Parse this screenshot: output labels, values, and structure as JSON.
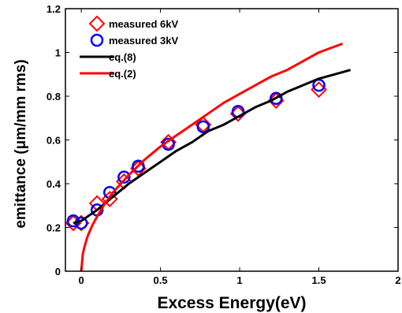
{
  "chart_data": {
    "type": "scatter",
    "xlabel": "Excess Energy(eV)",
    "ylabel": "emittance (μm/mm rms)",
    "xlim": [
      -0.1,
      2.0
    ],
    "ylim": [
      0,
      1.2
    ],
    "x_ticks": [
      "0",
      "0.5",
      "1",
      "1.5",
      "2"
    ],
    "y_ticks": [
      "0",
      "0.2",
      "0.4",
      "0.6",
      "0.8",
      "1",
      "1.2"
    ],
    "grid": false,
    "legend_position": "top-left",
    "series": [
      {
        "name": "measured 6kV",
        "kind": "marker",
        "marker": "diamond",
        "color": "#ff0000",
        "x": [
          -0.05,
          0.0,
          0.1,
          0.18,
          0.27,
          0.36,
          0.55,
          0.77,
          0.99,
          1.23,
          1.5
        ],
        "y": [
          0.22,
          0.22,
          0.31,
          0.33,
          0.41,
          0.47,
          0.59,
          0.67,
          0.72,
          0.78,
          0.83
        ]
      },
      {
        "name": "measured 3kV",
        "kind": "marker",
        "marker": "circle",
        "color": "#0000ff",
        "x": [
          -0.05,
          0.0,
          0.1,
          0.18,
          0.27,
          0.36,
          0.55,
          0.77,
          0.99,
          1.23,
          1.5
        ],
        "y": [
          0.23,
          0.22,
          0.28,
          0.36,
          0.43,
          0.48,
          0.58,
          0.66,
          0.73,
          0.79,
          0.85
        ]
      },
      {
        "name": "eq.(8)",
        "kind": "line",
        "color": "#000000",
        "x": [
          -0.05,
          0.0,
          0.1,
          0.2,
          0.3,
          0.4,
          0.5,
          0.6,
          0.7,
          0.8,
          0.9,
          1.0,
          1.1,
          1.2,
          1.3,
          1.4,
          1.5,
          1.6,
          1.7
        ],
        "y": [
          0.22,
          0.23,
          0.28,
          0.34,
          0.4,
          0.45,
          0.5,
          0.55,
          0.59,
          0.64,
          0.67,
          0.71,
          0.75,
          0.78,
          0.82,
          0.85,
          0.88,
          0.9,
          0.92
        ]
      },
      {
        "name": "eq.(2)",
        "kind": "line",
        "color": "#ff0000",
        "x": [
          0.0,
          0.005,
          0.01,
          0.02,
          0.04,
          0.07,
          0.1,
          0.15,
          0.2,
          0.3,
          0.4,
          0.5,
          0.6,
          0.7,
          0.8,
          0.9,
          1.0,
          1.1,
          1.2,
          1.3,
          1.4,
          1.5,
          1.65
        ],
        "y": [
          0.0,
          0.04,
          0.08,
          0.11,
          0.16,
          0.21,
          0.25,
          0.31,
          0.36,
          0.44,
          0.51,
          0.57,
          0.62,
          0.67,
          0.72,
          0.77,
          0.81,
          0.85,
          0.89,
          0.92,
          0.96,
          1.0,
          1.04
        ]
      }
    ]
  }
}
